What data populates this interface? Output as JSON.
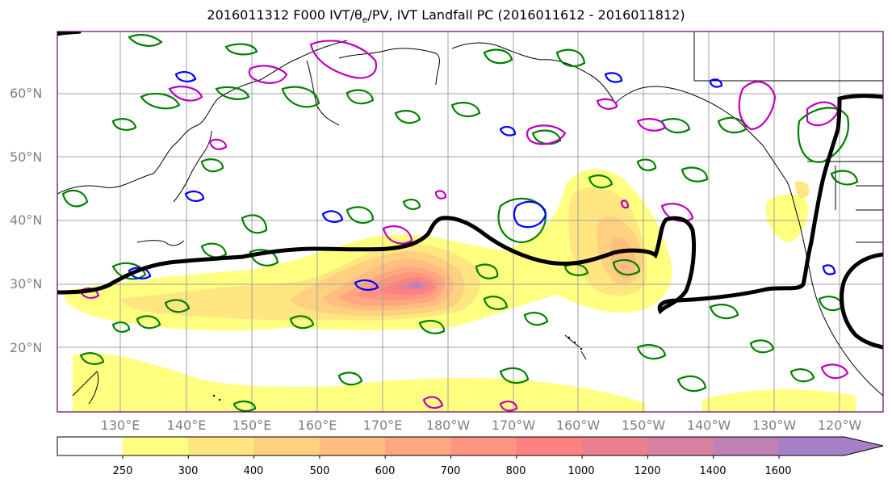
{
  "title": "2016011312 F000 IVT/θe/PV, IVT Landfall PC (2016011612 - 2016011812)",
  "map": {
    "latitude_labels": [
      "60°N",
      "50°N",
      "40°N",
      "30°N",
      "20°N"
    ],
    "longitude_labels": [
      "130°E",
      "140°E",
      "150°E",
      "160°E",
      "170°E",
      "180°W",
      "170°W",
      "160°W",
      "150°W",
      "140°W",
      "130°W",
      "120°W"
    ]
  },
  "colorbar": {
    "labels": [
      "250",
      "300",
      "400",
      "500",
      "600",
      "700",
      "800",
      "1000",
      "1200",
      "1400",
      "1600"
    ],
    "colors": [
      "#ffff80",
      "#ffe680",
      "#ffd080",
      "#ffbd80",
      "#ffa880",
      "#ff9580",
      "#ff8080",
      "#ec8090",
      "#d880a2",
      "#c080b5",
      "#a880c8"
    ],
    "extend": "max"
  },
  "chart_data": {
    "type": "map",
    "title": "2016011312 F000 IVT/θe/PV, IVT Landfall PC (2016011612 - 2016011812)",
    "lon_range": [
      "120°E",
      "110°W"
    ],
    "lat_range": [
      "10°N",
      "70°N"
    ],
    "grid": true,
    "ivt_levels": [
      250,
      300,
      400,
      500,
      600,
      700,
      800,
      1000,
      1200,
      1400,
      1600
    ],
    "contours": {
      "landfall_pc": "#000000",
      "theta_e": "#008000",
      "pv_blue": "#0000ff",
      "pv_magenta": "#c000c0"
    }
  }
}
